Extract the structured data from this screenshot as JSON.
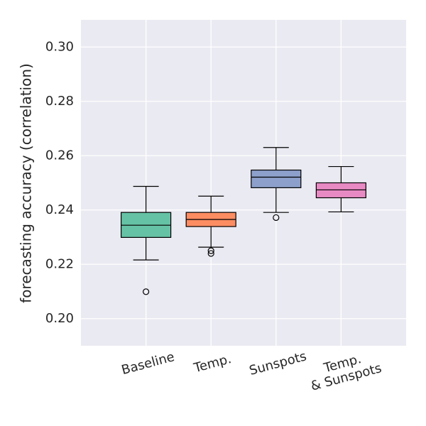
{
  "chart_data": {
    "type": "box",
    "ylabel": "forecasting accuracy (correlation)",
    "categories": [
      "Baseline",
      "Temp.",
      "Sunspots",
      "Temp.\n& Sunspots"
    ],
    "colors": [
      "#66c2a5",
      "#fc8d62",
      "#8da0cb",
      "#e78ac3"
    ],
    "boxes": [
      {
        "whisker_low": 0.2216,
        "q1": 0.2299,
        "median": 0.2344,
        "q3": 0.2391,
        "whisker_high": 0.2487,
        "outliers": [
          0.2099
        ]
      },
      {
        "whisker_low": 0.2263,
        "q1": 0.2339,
        "median": 0.2365,
        "q3": 0.2391,
        "whisker_high": 0.2451,
        "outliers": [
          0.225,
          0.224
        ]
      },
      {
        "whisker_low": 0.2391,
        "q1": 0.2482,
        "median": 0.2521,
        "q3": 0.2547,
        "whisker_high": 0.263,
        "outliers": [
          0.2372
        ]
      },
      {
        "whisker_low": 0.2393,
        "q1": 0.2445,
        "median": 0.2474,
        "q3": 0.25,
        "whisker_high": 0.256,
        "outliers": []
      }
    ],
    "ylim": [
      0.19,
      0.31
    ],
    "yticks": [
      {
        "value": 0.2,
        "label": "0.20"
      },
      {
        "value": 0.22,
        "label": "0.22"
      },
      {
        "value": 0.24,
        "label": "0.24"
      },
      {
        "value": 0.26,
        "label": "0.26"
      },
      {
        "value": 0.28,
        "label": "0.28"
      },
      {
        "value": 0.3,
        "label": "0.30"
      }
    ],
    "grid": true
  }
}
